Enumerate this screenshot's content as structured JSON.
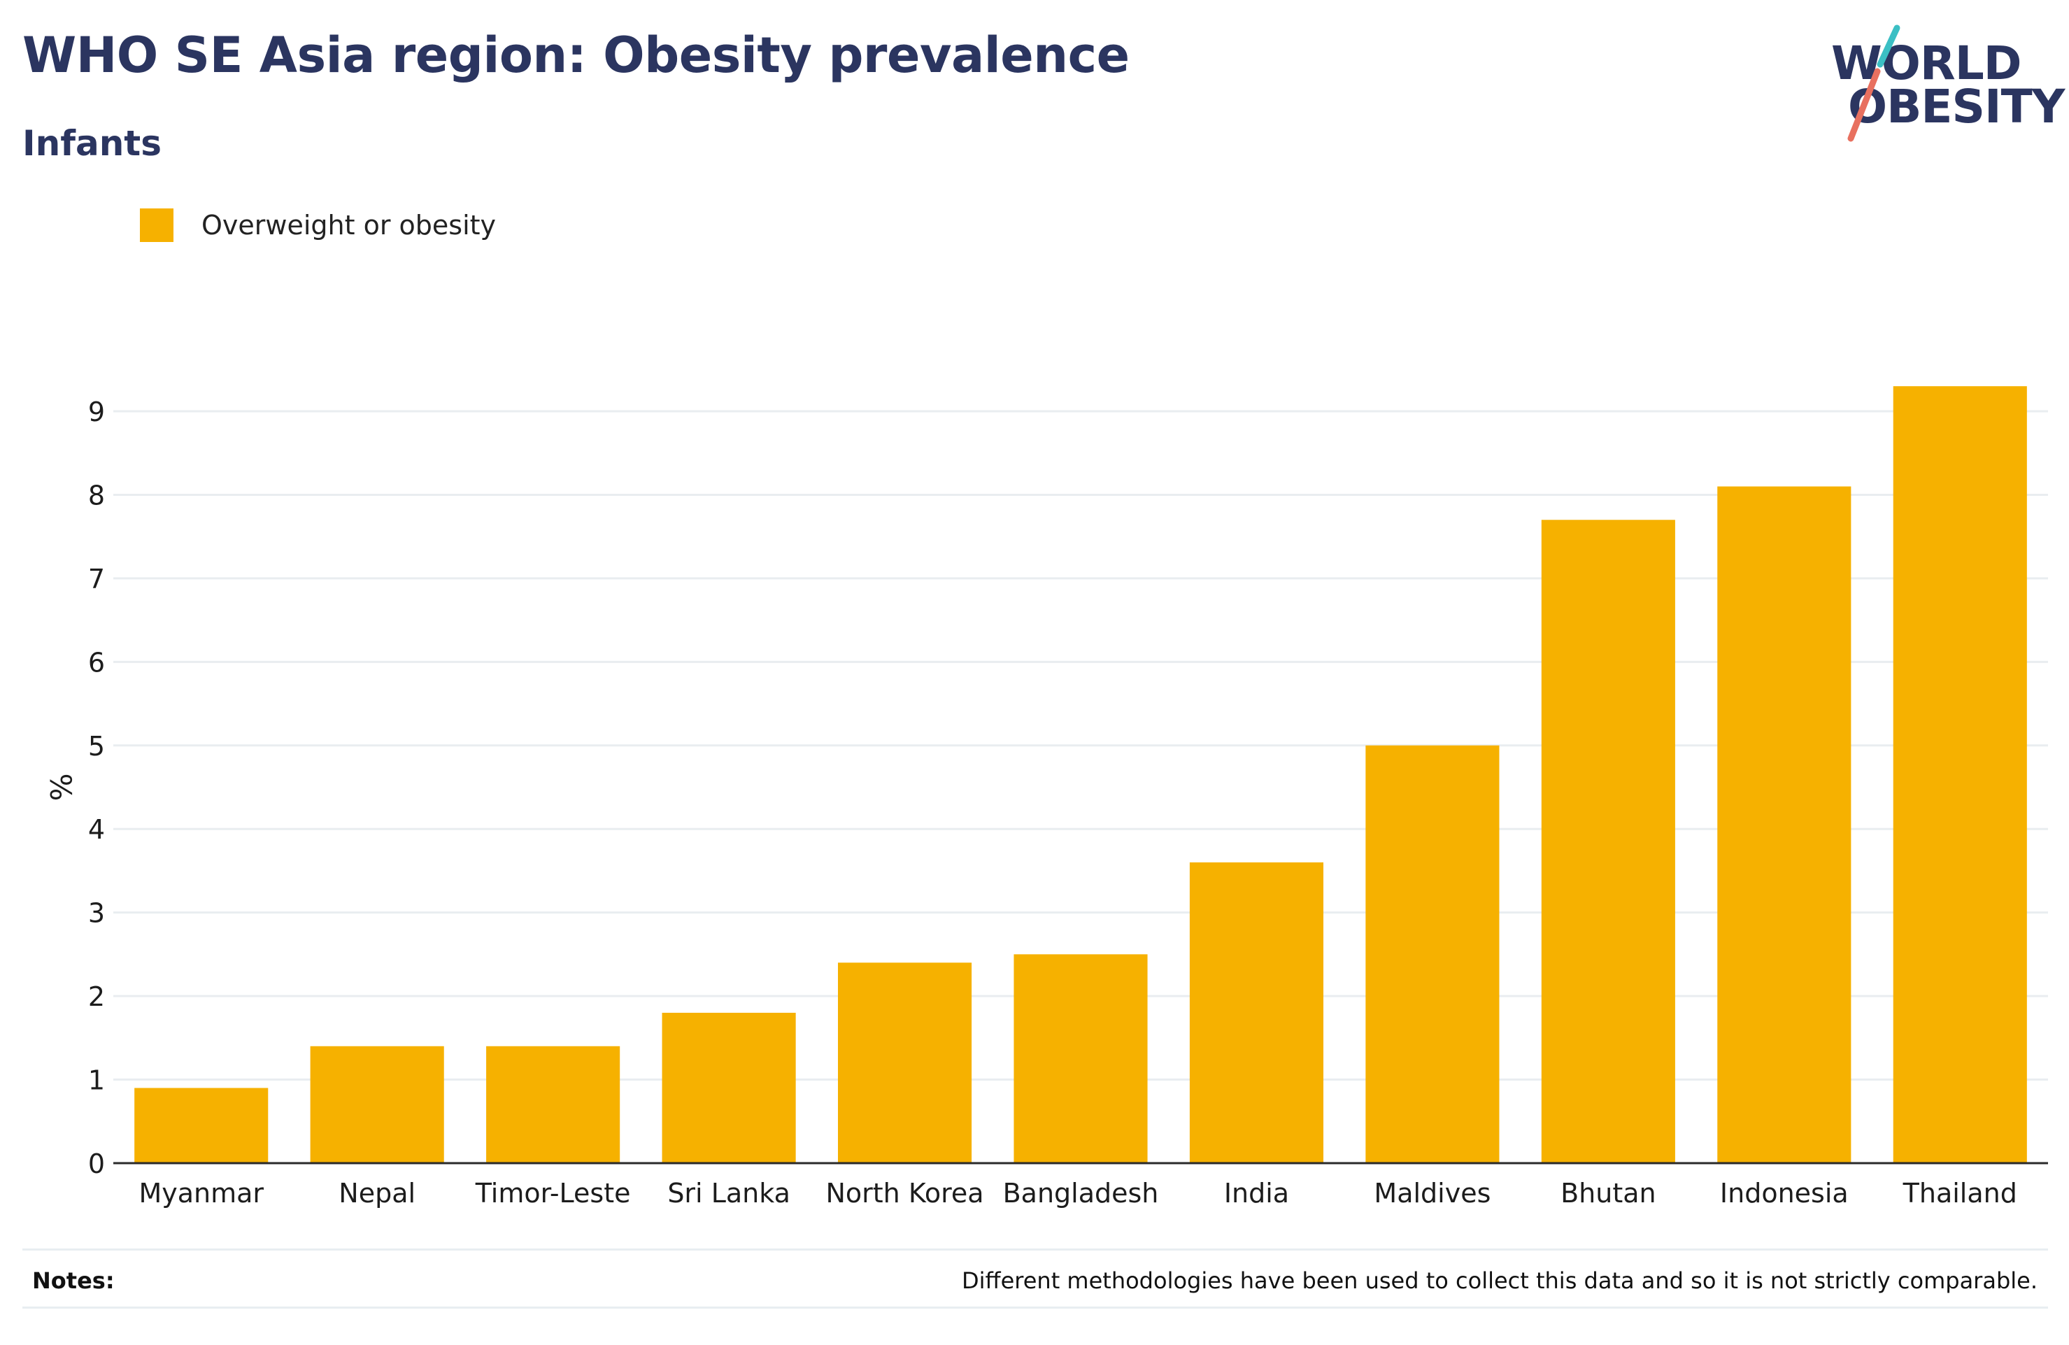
{
  "header": {
    "title": "WHO SE Asia region: Obesity prevalence",
    "subtitle": "Infants"
  },
  "logo": {
    "line1": "WORLD",
    "line2": "OBESITY",
    "accent_teal": "#3bbfc4",
    "accent_coral": "#e8705f"
  },
  "notes": {
    "label": "Notes:",
    "text": "Different methodologies have been used to collect this data and so it is not strictly comparable."
  },
  "chart_data": {
    "type": "bar",
    "title": "WHO SE Asia region: Obesity prevalence",
    "subtitle": "Infants",
    "xlabel": "",
    "ylabel": "%",
    "ylim": [
      0,
      9.5
    ],
    "yticks": [
      0,
      1,
      2,
      3,
      4,
      5,
      6,
      7,
      8,
      9
    ],
    "grid": true,
    "legend_position": "top-left",
    "categories": [
      "Myanmar",
      "Nepal",
      "Timor-Leste",
      "Sri Lanka",
      "North Korea",
      "Bangladesh",
      "India",
      "Maldives",
      "Bhutan",
      "Indonesia",
      "Thailand"
    ],
    "series": [
      {
        "name": "Overweight or obesity",
        "color": "#f6b100",
        "values": [
          0.9,
          1.4,
          1.4,
          1.8,
          2.4,
          2.5,
          3.6,
          5.0,
          7.7,
          8.1,
          9.3
        ]
      }
    ]
  }
}
